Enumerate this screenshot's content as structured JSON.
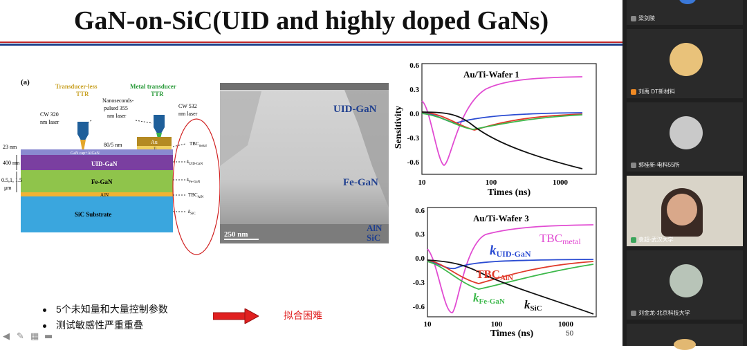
{
  "slide": {
    "title": "GaN-on-SiC(UID and highly doped GaNs)",
    "bullets": [
      "5个未知量和大量控制参数",
      "测试敏感性严重重叠"
    ],
    "arrow_label": "拟合困难",
    "page_number": "50"
  },
  "schematic": {
    "panel_label": "(a)",
    "transducer_less": "Transducer-less",
    "ttr": "TTR",
    "metal_transducer": "Metal transducer",
    "nanoseconds_line1": "Nanoseconds-",
    "nanoseconds_line2": "pulsed 355",
    "nanoseconds_line3": "nm laser",
    "cw320_line1": "CW 320",
    "cw320_line2": "nm laser",
    "cw532_line1": "CW 532",
    "cw532_line2": "nm laser",
    "au": "Au",
    "ti": "Ti",
    "thick_8005": "80/5 nm",
    "thick_23": "23 nm",
    "thick_400": "400 nm",
    "thick_05": "0.5,1, 1.5",
    "thick_um": "μm",
    "layer_cap": "GaN cap+AlGaN",
    "layer_uid": "UID-GaN",
    "layer_fe": "Fe-GaN",
    "layer_aln": "AlN",
    "layer_sic": "SiC Substrate",
    "p_tbc_metal_main": "TBC",
    "p_tbc_metal_sub": "metal",
    "p_k": "k",
    "p_k_uid_sub": "UID-GaN",
    "p_k_fe_sub": "Fe-GaN",
    "p_tbc_aln_main": "TBC",
    "p_tbc_aln_sub": "AlN",
    "p_k_sic_sub": "SiC"
  },
  "tem": {
    "uid": "UID-GaN",
    "fe": "Fe-GaN",
    "aln": "AlN",
    "sic": "SiC",
    "scale": "250 nm"
  },
  "top_plot": {
    "title": "Au/Ti-Wafer 1",
    "ylabel": "Sensitivity",
    "xlabel": "Times (ns)",
    "yticks": [
      "0.6",
      "0.3",
      "0.0",
      "-0.3",
      "-0.6"
    ],
    "xticks": [
      "10",
      "100",
      "1000"
    ]
  },
  "bottom_plot": {
    "title": "Au/Ti-Wafer 3",
    "xlabel": "Times (ns)",
    "yticks": [
      "0.6",
      "0.3",
      "0.0",
      "-0.3",
      "-0.6"
    ],
    "xticks": [
      "10",
      "100",
      "1000"
    ],
    "lbl_tbc_metal_main": "TBC",
    "lbl_tbc_metal_sub": "metal",
    "lbl_k": "k",
    "lbl_k_uid_sub": "UID-GaN",
    "lbl_tbc_aln_main": "TBC",
    "lbl_tbc_aln_sub": "AlN",
    "lbl_k_fe_sub": "Fe-GaN",
    "lbl_k_sic_sub": "SiC"
  },
  "participants": [
    {
      "name": "梁剑陵",
      "mic": "off"
    },
    {
      "name": "刘禹 DT新材料",
      "mic": "orange"
    },
    {
      "name": "郭桂新-电科55所",
      "mic": "off"
    },
    {
      "name": "袁超-武汉大学",
      "mic": "on"
    },
    {
      "name": "刘金龙-北京科技大学",
      "mic": "off"
    }
  ],
  "colors": {
    "uid_layer": "#7a3fa0",
    "fe_layer": "#8fc44b",
    "aln_layer": "#f2b233",
    "sic_layer": "#3aa6de",
    "pink": "#e14bd2",
    "blue": "#2a4bd2",
    "red": "#e03a2a",
    "green": "#3cb84a",
    "black": "#111111"
  }
}
